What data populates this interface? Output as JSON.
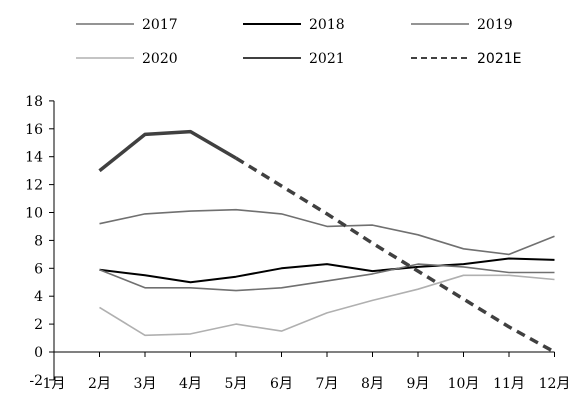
{
  "chart_data": {
    "type": "line",
    "title": "",
    "xlabel": "",
    "ylabel": "",
    "categories": [
      "1月",
      "2月",
      "3月",
      "4月",
      "5月",
      "6月",
      "7月",
      "8月",
      "9月",
      "10月",
      "11月",
      "12月"
    ],
    "ylim": [
      -2,
      18
    ],
    "yticks": [
      -2,
      0,
      2,
      4,
      6,
      8,
      10,
      12,
      14,
      16,
      18
    ],
    "grid": false,
    "legend_position": "top",
    "series": [
      {
        "name": "2017",
        "color": "#707070",
        "width": 1.6,
        "dash": "",
        "values": [
          null,
          9.2,
          9.9,
          10.1,
          10.2,
          9.9,
          9.0,
          9.1,
          8.4,
          7.4,
          7.0,
          8.3
        ]
      },
      {
        "name": "2018",
        "color": "#000000",
        "width": 2.0,
        "dash": "",
        "values": [
          null,
          5.9,
          5.5,
          5.0,
          5.4,
          6.0,
          6.3,
          5.8,
          6.1,
          6.3,
          6.7,
          6.6
        ]
      },
      {
        "name": "2019",
        "color": "#707070",
        "width": 1.6,
        "dash": "",
        "values": [
          null,
          5.9,
          4.6,
          4.6,
          4.4,
          4.6,
          5.1,
          5.6,
          6.3,
          6.1,
          5.7,
          5.7
        ]
      },
      {
        "name": "2020",
        "color": "#b0b0b0",
        "width": 1.6,
        "dash": "",
        "values": [
          null,
          3.2,
          1.2,
          1.3,
          2.0,
          1.5,
          2.8,
          3.7,
          4.5,
          5.5,
          5.5,
          5.2
        ]
      },
      {
        "name": "2021",
        "color": "#404040",
        "width": 3.5,
        "dash": "",
        "values": [
          null,
          13.0,
          15.6,
          15.8,
          13.9,
          null,
          null,
          null,
          null,
          null,
          null,
          null
        ]
      },
      {
        "name": "2021E",
        "color": "#404040",
        "width": 3.5,
        "dash": "9,6",
        "values": [
          null,
          null,
          null,
          null,
          13.9,
          11.9,
          9.9,
          7.8,
          5.8,
          3.8,
          1.8,
          0.0
        ]
      }
    ]
  }
}
